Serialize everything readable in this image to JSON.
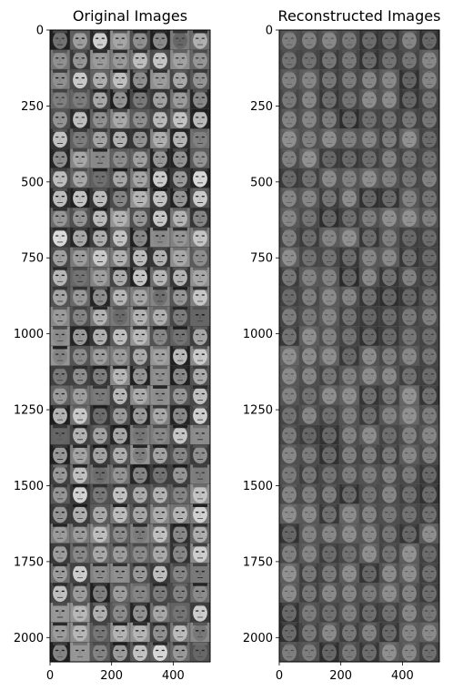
{
  "chart_data": [
    {
      "type": "heatmap",
      "title": "Original Images",
      "xlabel": "",
      "ylabel": "",
      "xlim": [
        0,
        520
      ],
      "ylim": [
        2080,
        0
      ],
      "x_ticks": [
        0,
        200,
        400
      ],
      "y_ticks": [
        0,
        250,
        500,
        750,
        1000,
        1250,
        1500,
        1750,
        2000
      ],
      "grid_cols": 8,
      "grid_rows": 32,
      "tile_size": 65,
      "colormap": "gray",
      "content": "montage of grayscale face images"
    },
    {
      "type": "heatmap",
      "title": "Reconstructed Images",
      "xlabel": "",
      "ylabel": "",
      "xlim": [
        0,
        520
      ],
      "ylim": [
        2080,
        0
      ],
      "x_ticks": [
        0,
        200,
        400
      ],
      "y_ticks": [
        0,
        250,
        500,
        750,
        1000,
        1250,
        1500,
        1750,
        2000
      ],
      "grid_cols": 8,
      "grid_rows": 32,
      "tile_size": 65,
      "colormap": "gray",
      "content": "montage of blurred reconstructed grayscale faces"
    }
  ]
}
